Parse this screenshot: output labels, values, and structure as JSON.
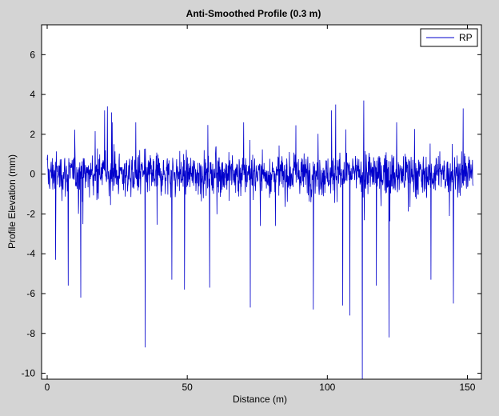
{
  "chart_data": {
    "type": "line",
    "title": "Anti-Smoothed Profile (0.3 m)",
    "xlabel": "Distance (m)",
    "ylabel": "Profile Elevation (mm)",
    "xlim": [
      -2,
      155
    ],
    "ylim": [
      -10.3,
      7.5
    ],
    "x_ticks": [
      0,
      50,
      100,
      150
    ],
    "x_tick_labels": [
      "0",
      "50",
      "100",
      "150"
    ],
    "y_ticks": [
      6,
      4,
      2,
      0,
      -2,
      -4,
      -6,
      -8,
      -10
    ],
    "y_tick_labels": [
      "6",
      "4",
      "2",
      "0",
      "-2",
      "-4",
      "-6",
      "-8",
      "-10"
    ],
    "grid": false,
    "legend_position": "top-right",
    "background": "#d4d4d4",
    "plot_background": "#ffffff",
    "series": [
      {
        "name": "RP",
        "color": "#0000cc",
        "x_start": 0,
        "x_end": 152,
        "typical_amplitude": 1.0,
        "upper_spikes": [
          {
            "x": 20.5,
            "y": 3.2
          },
          {
            "x": 21.5,
            "y": 3.4
          },
          {
            "x": 23.0,
            "y": 3.1
          },
          {
            "x": 101.5,
            "y": 3.2
          },
          {
            "x": 103.0,
            "y": 3.5
          },
          {
            "x": 113.0,
            "y": 3.7
          },
          {
            "x": 148.5,
            "y": 3.3
          }
        ],
        "lower_spikes": [
          {
            "x": 3.0,
            "y": -4.3
          },
          {
            "x": 7.5,
            "y": -5.6
          },
          {
            "x": 12.0,
            "y": -6.2
          },
          {
            "x": 35.0,
            "y": -8.7
          },
          {
            "x": 44.5,
            "y": -5.3
          },
          {
            "x": 49.0,
            "y": -5.8
          },
          {
            "x": 58.0,
            "y": -5.7
          },
          {
            "x": 72.5,
            "y": -6.7
          },
          {
            "x": 95.0,
            "y": -6.8
          },
          {
            "x": 105.5,
            "y": -6.6
          },
          {
            "x": 108.0,
            "y": -7.1
          },
          {
            "x": 112.5,
            "y": -10.3
          },
          {
            "x": 117.5,
            "y": -5.6
          },
          {
            "x": 122.0,
            "y": -8.2
          },
          {
            "x": 137.0,
            "y": -5.3
          },
          {
            "x": 145.0,
            "y": -6.5
          }
        ]
      }
    ]
  }
}
